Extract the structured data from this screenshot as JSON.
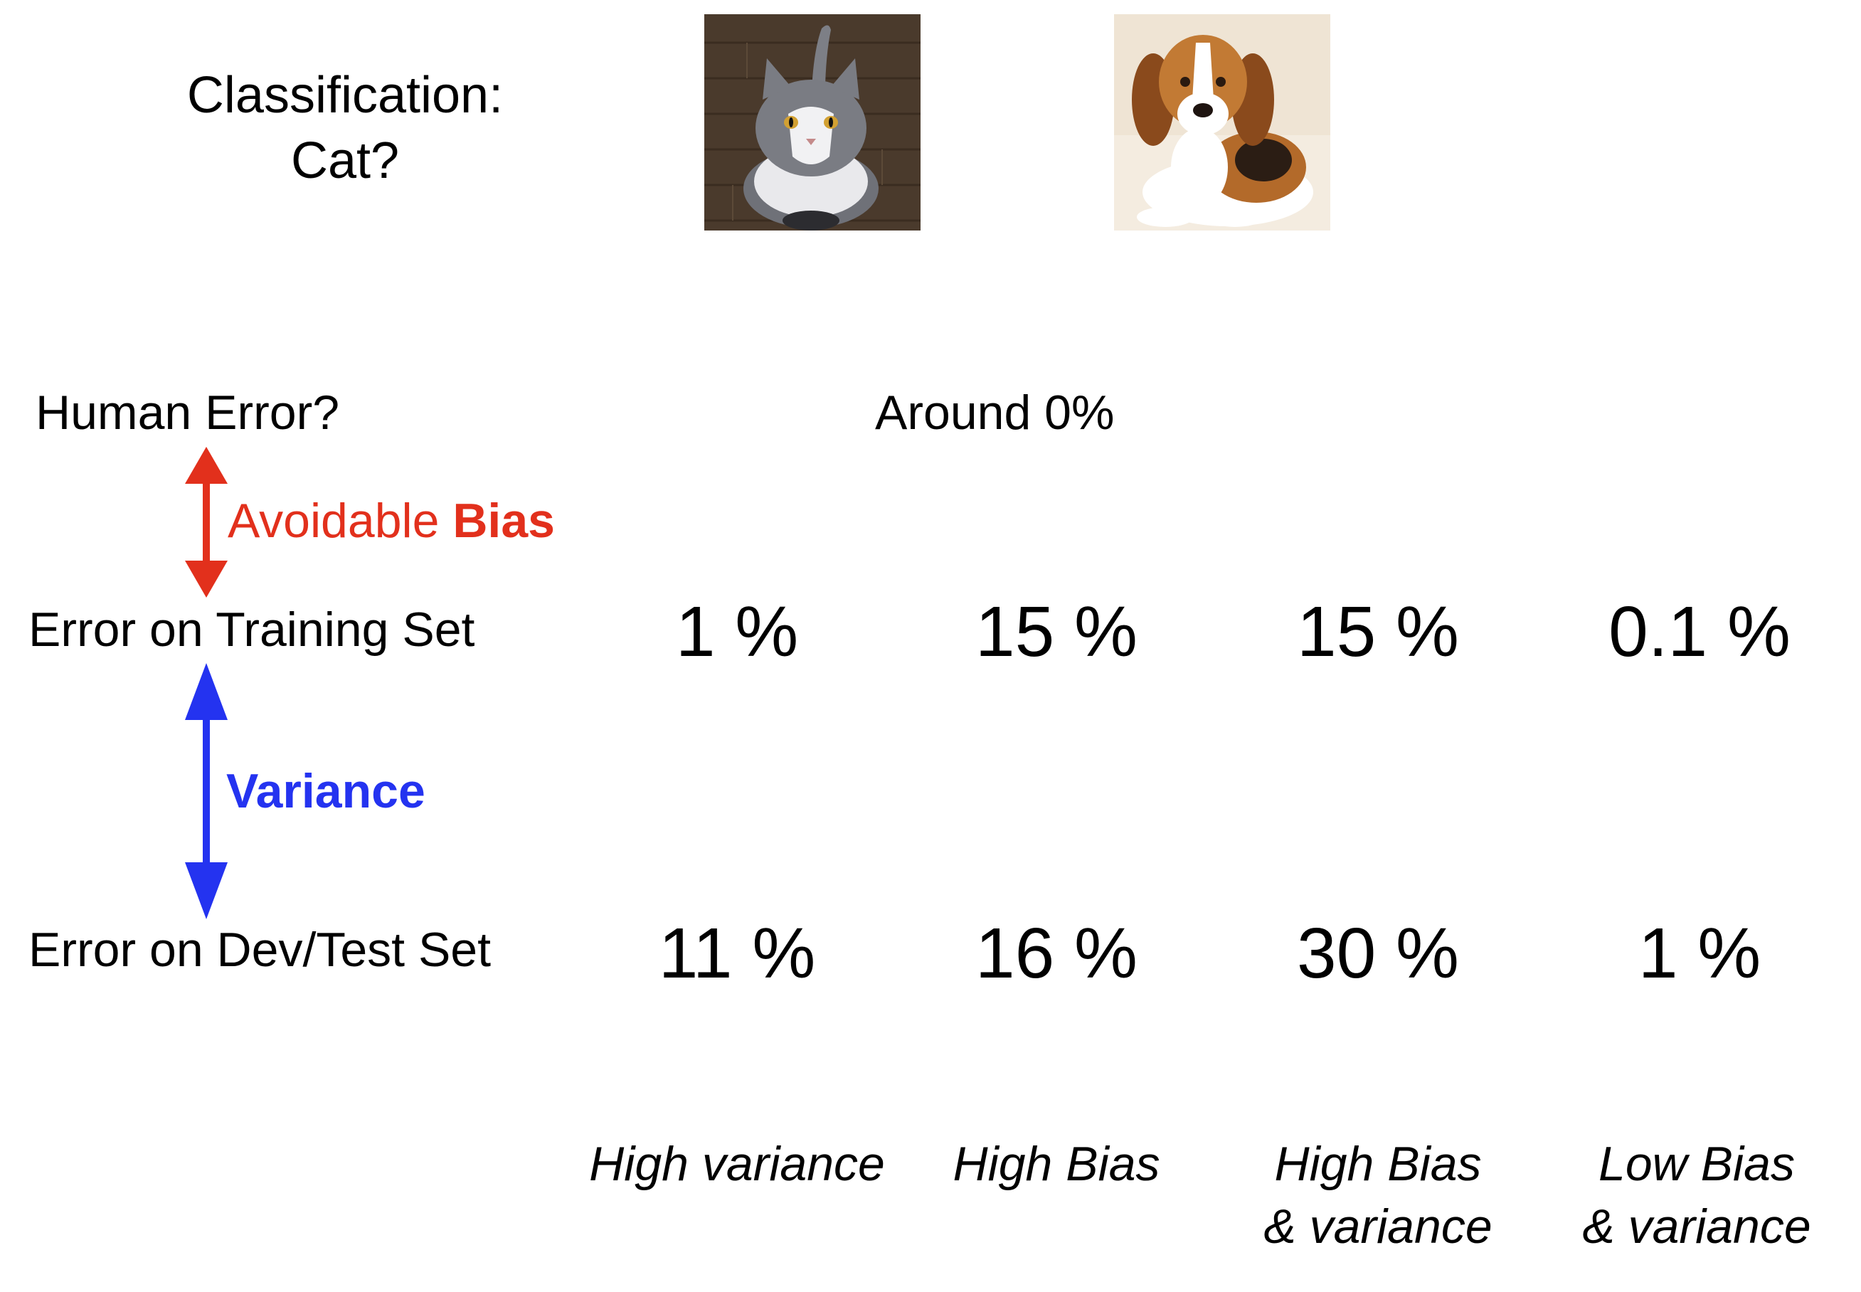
{
  "title": {
    "line1": "Classification:",
    "line2": "Cat?"
  },
  "images": [
    {
      "icon": "cat-photo"
    },
    {
      "icon": "dog-photo"
    }
  ],
  "rows": {
    "human": {
      "label": "Human Error?",
      "value": "Around 0%"
    },
    "training": {
      "label": "Error on Training Set",
      "values": [
        "1 %",
        "15 %",
        "15 %",
        "0.1 %"
      ]
    },
    "dev": {
      "label": "Error on Dev/Test Set",
      "values": [
        "11 %",
        "16 %",
        "30 %",
        "1 %"
      ]
    }
  },
  "annotations": {
    "avoidable_bias": {
      "prefix": "Avoidable ",
      "bold": "Bias",
      "color": "#e2301c"
    },
    "variance": {
      "label": "Variance",
      "color": "#2433f0"
    }
  },
  "diagnoses": [
    {
      "line1": "High variance",
      "line2": ""
    },
    {
      "line1": "High Bias",
      "line2": ""
    },
    {
      "line1": "High Bias",
      "line2": "& variance"
    },
    {
      "line1": "Low Bias",
      "line2": "& variance"
    }
  ]
}
